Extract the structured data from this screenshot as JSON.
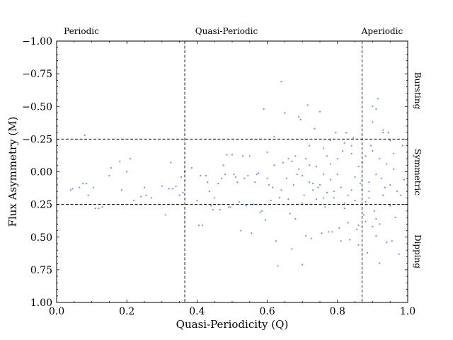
{
  "chart_data": {
    "type": "scatter",
    "xlabel": "Quasi-Periodicity (Q)",
    "ylabel": "Flux Asymmetry (M)",
    "xlim": [
      0.0,
      1.0
    ],
    "ylim": [
      1.0,
      -1.0
    ],
    "y_axis_inverted": true,
    "grid": false,
    "marker_color": "#6495ED",
    "x_ticks": [
      "0.0",
      "0.2",
      "0.4",
      "0.6",
      "0.8",
      "1.0"
    ],
    "x_tick_values": [
      0.0,
      0.2,
      0.4,
      0.6,
      0.8,
      1.0
    ],
    "y_ticks": [
      "−1.00",
      "−0.75",
      "−0.50",
      "−0.25",
      "0.00",
      "0.25",
      "0.50",
      "0.75",
      "1.00"
    ],
    "y_tick_values": [
      -1.0,
      -0.75,
      -0.5,
      -0.25,
      0.0,
      0.25,
      0.5,
      0.75,
      1.0
    ],
    "reference_lines": {
      "vertical": [
        0.365,
        0.87
      ],
      "horizontal": [
        -0.25,
        0.25
      ],
      "style": "dashed"
    },
    "top_labels": [
      "Periodic",
      "Quasi-Periodic",
      "Aperiodic"
    ],
    "right_labels": [
      "Bursting",
      "Symmetric",
      "Dipping"
    ],
    "points": [
      {
        "x": 0.04,
        "y": 0.14
      },
      {
        "x": 0.045,
        "y": 0.13
      },
      {
        "x": 0.065,
        "y": 0.12
      },
      {
        "x": 0.075,
        "y": 0.09
      },
      {
        "x": 0.08,
        "y": -0.28
      },
      {
        "x": 0.085,
        "y": 0.09
      },
      {
        "x": 0.09,
        "y": 0.18
      },
      {
        "x": 0.105,
        "y": 0.12
      },
      {
        "x": 0.11,
        "y": 0.28
      },
      {
        "x": 0.12,
        "y": 0.28
      },
      {
        "x": 0.13,
        "y": 0.27
      },
      {
        "x": 0.15,
        "y": 0.03
      },
      {
        "x": 0.155,
        "y": -0.03
      },
      {
        "x": 0.18,
        "y": -0.08
      },
      {
        "x": 0.185,
        "y": 0.14
      },
      {
        "x": 0.2,
        "y": 0.0
      },
      {
        "x": 0.21,
        "y": -0.1
      },
      {
        "x": 0.22,
        "y": 0.22
      },
      {
        "x": 0.24,
        "y": 0.19
      },
      {
        "x": 0.25,
        "y": 0.12
      },
      {
        "x": 0.255,
        "y": 0.18
      },
      {
        "x": 0.27,
        "y": 0.2
      },
      {
        "x": 0.3,
        "y": 0.11
      },
      {
        "x": 0.31,
        "y": 0.33
      },
      {
        "x": 0.32,
        "y": 0.13
      },
      {
        "x": 0.325,
        "y": -0.07
      },
      {
        "x": 0.33,
        "y": 0.13
      },
      {
        "x": 0.34,
        "y": 0.11
      },
      {
        "x": 0.35,
        "y": 0.18
      },
      {
        "x": 0.355,
        "y": 0.04
      },
      {
        "x": 0.36,
        "y": 0.16
      },
      {
        "x": 0.365,
        "y": 0.0
      },
      {
        "x": 0.385,
        "y": -0.03
      },
      {
        "x": 0.4,
        "y": 0.22
      },
      {
        "x": 0.405,
        "y": 0.41
      },
      {
        "x": 0.41,
        "y": 0.03
      },
      {
        "x": 0.415,
        "y": 0.41
      },
      {
        "x": 0.425,
        "y": 0.03
      },
      {
        "x": 0.43,
        "y": 0.08
      },
      {
        "x": 0.435,
        "y": 0.15
      },
      {
        "x": 0.44,
        "y": 0.26
      },
      {
        "x": 0.445,
        "y": 0.29
      },
      {
        "x": 0.45,
        "y": 0.2
      },
      {
        "x": 0.46,
        "y": 0.09
      },
      {
        "x": 0.465,
        "y": 0.29
      },
      {
        "x": 0.47,
        "y": 0.05
      },
      {
        "x": 0.475,
        "y": -0.05
      },
      {
        "x": 0.48,
        "y": 0.02
      },
      {
        "x": 0.485,
        "y": -0.13
      },
      {
        "x": 0.49,
        "y": 0.27
      },
      {
        "x": 0.495,
        "y": 0.27
      },
      {
        "x": 0.5,
        "y": -0.13
      },
      {
        "x": 0.505,
        "y": 0.02
      },
      {
        "x": 0.51,
        "y": 0.04
      },
      {
        "x": 0.515,
        "y": 0.08
      },
      {
        "x": 0.52,
        "y": 0.23
      },
      {
        "x": 0.525,
        "y": 0.45
      },
      {
        "x": 0.53,
        "y": -0.12
      },
      {
        "x": 0.535,
        "y": 0.05
      },
      {
        "x": 0.54,
        "y": 0.26
      },
      {
        "x": 0.545,
        "y": 0.03
      },
      {
        "x": 0.55,
        "y": -0.12
      },
      {
        "x": 0.555,
        "y": 0.47
      },
      {
        "x": 0.56,
        "y": 0.25
      },
      {
        "x": 0.565,
        "y": 0.08
      },
      {
        "x": 0.57,
        "y": 0.02
      },
      {
        "x": 0.575,
        "y": 0.01
      },
      {
        "x": 0.58,
        "y": 0.31
      },
      {
        "x": 0.585,
        "y": 0.3
      },
      {
        "x": 0.59,
        "y": -0.48
      },
      {
        "x": 0.595,
        "y": 0.37
      },
      {
        "x": 0.6,
        "y": -0.15
      },
      {
        "x": 0.605,
        "y": 0.1
      },
      {
        "x": 0.61,
        "y": 0.22
      },
      {
        "x": 0.615,
        "y": 0.12
      },
      {
        "x": 0.62,
        "y": -0.27
      },
      {
        "x": 0.625,
        "y": 0.53
      },
      {
        "x": 0.63,
        "y": 0.72
      },
      {
        "x": 0.635,
        "y": 0.2
      },
      {
        "x": 0.64,
        "y": -0.69
      },
      {
        "x": 0.645,
        "y": -0.07
      },
      {
        "x": 0.65,
        "y": -0.45
      },
      {
        "x": 0.655,
        "y": 0.05
      },
      {
        "x": 0.66,
        "y": 0.21
      },
      {
        "x": 0.665,
        "y": 0.32
      },
      {
        "x": 0.67,
        "y": 0.59
      },
      {
        "x": 0.675,
        "y": 0.1
      },
      {
        "x": 0.68,
        "y": 0.36
      },
      {
        "x": 0.685,
        "y": 0.02
      },
      {
        "x": 0.69,
        "y": -0.42
      },
      {
        "x": 0.695,
        "y": -0.4
      },
      {
        "x": 0.7,
        "y": 0.71
      },
      {
        "x": 0.705,
        "y": 0.18
      },
      {
        "x": 0.71,
        "y": 0.49
      },
      {
        "x": 0.715,
        "y": -0.51
      },
      {
        "x": 0.72,
        "y": -0.05
      },
      {
        "x": 0.725,
        "y": 0.51
      },
      {
        "x": 0.73,
        "y": 0.09
      },
      {
        "x": 0.735,
        "y": -0.33
      },
      {
        "x": 0.74,
        "y": 0.21
      },
      {
        "x": 0.745,
        "y": 0.12
      },
      {
        "x": 0.75,
        "y": -0.46
      },
      {
        "x": 0.755,
        "y": 0.47
      },
      {
        "x": 0.76,
        "y": 0.02
      },
      {
        "x": 0.765,
        "y": 0.27
      },
      {
        "x": 0.77,
        "y": -0.12
      },
      {
        "x": 0.775,
        "y": 0.46
      },
      {
        "x": 0.78,
        "y": 0.06
      },
      {
        "x": 0.785,
        "y": 0.46
      },
      {
        "x": 0.79,
        "y": 0.15
      },
      {
        "x": 0.795,
        "y": -0.3
      },
      {
        "x": 0.8,
        "y": 0.02
      },
      {
        "x": 0.805,
        "y": 0.43
      },
      {
        "x": 0.81,
        "y": 0.53
      },
      {
        "x": 0.815,
        "y": -0.16
      },
      {
        "x": 0.82,
        "y": 0.28
      },
      {
        "x": 0.825,
        "y": -0.3
      },
      {
        "x": 0.83,
        "y": 0.39
      },
      {
        "x": 0.835,
        "y": 0.52
      },
      {
        "x": 0.84,
        "y": 0.14
      },
      {
        "x": 0.845,
        "y": -0.26
      },
      {
        "x": 0.85,
        "y": 0.04
      },
      {
        "x": 0.855,
        "y": 0.44
      },
      {
        "x": 0.86,
        "y": 0.56
      },
      {
        "x": 0.865,
        "y": 0.09
      },
      {
        "x": 0.87,
        "y": -0.07
      },
      {
        "x": 0.875,
        "y": 0.33
      },
      {
        "x": 0.88,
        "y": 0.23
      },
      {
        "x": 0.885,
        "y": 0.62
      },
      {
        "x": 0.89,
        "y": 0.15
      },
      {
        "x": 0.895,
        "y": -0.2
      },
      {
        "x": 0.9,
        "y": -0.38
      },
      {
        "x": 0.905,
        "y": 0.3
      },
      {
        "x": 0.91,
        "y": 0.49
      },
      {
        "x": 0.915,
        "y": -0.56
      },
      {
        "x": 0.92,
        "y": 0.7
      },
      {
        "x": 0.925,
        "y": 0.05
      },
      {
        "x": 0.93,
        "y": -0.3
      },
      {
        "x": 0.935,
        "y": 0.12
      },
      {
        "x": 0.94,
        "y": 0.54
      },
      {
        "x": 0.945,
        "y": -0.3
      },
      {
        "x": 0.95,
        "y": 0.26
      },
      {
        "x": 0.955,
        "y": 0.53
      },
      {
        "x": 0.96,
        "y": -0.02
      },
      {
        "x": 0.965,
        "y": 0.35
      },
      {
        "x": 0.97,
        "y": 0.15
      },
      {
        "x": 0.975,
        "y": 0.63
      },
      {
        "x": 0.98,
        "y": 0.18
      },
      {
        "x": 0.985,
        "y": -0.2
      },
      {
        "x": 0.99,
        "y": 0.06
      },
      {
        "x": 0.67,
        "y": -0.08
      },
      {
        "x": 0.68,
        "y": -0.12
      },
      {
        "x": 0.69,
        "y": -0.02
      },
      {
        "x": 0.7,
        "y": 0.03
      },
      {
        "x": 0.71,
        "y": -0.1
      },
      {
        "x": 0.72,
        "y": 0.08
      },
      {
        "x": 0.73,
        "y": 0.14
      },
      {
        "x": 0.74,
        "y": -0.04
      },
      {
        "x": 0.75,
        "y": 0.1
      },
      {
        "x": 0.76,
        "y": -0.18
      },
      {
        "x": 0.77,
        "y": 0.16
      },
      {
        "x": 0.78,
        "y": -0.06
      },
      {
        "x": 0.79,
        "y": 0.2
      },
      {
        "x": 0.8,
        "y": -0.1
      },
      {
        "x": 0.81,
        "y": 0.12
      },
      {
        "x": 0.82,
        "y": -0.22
      },
      {
        "x": 0.83,
        "y": 0.18
      },
      {
        "x": 0.84,
        "y": -0.14
      },
      {
        "x": 0.85,
        "y": 0.22
      },
      {
        "x": 0.86,
        "y": -0.04
      },
      {
        "x": 0.87,
        "y": 0.14
      },
      {
        "x": 0.88,
        "y": -0.12
      },
      {
        "x": 0.89,
        "y": 0.08
      },
      {
        "x": 0.9,
        "y": -0.16
      },
      {
        "x": 0.91,
        "y": 0.02
      },
      {
        "x": 0.92,
        "y": -0.1
      },
      {
        "x": 0.93,
        "y": 0.18
      },
      {
        "x": 0.94,
        "y": -0.06
      },
      {
        "x": 0.95,
        "y": 0.1
      },
      {
        "x": 0.96,
        "y": -0.14
      },
      {
        "x": 0.9,
        "y": 0.42
      },
      {
        "x": 0.91,
        "y": 0.36
      },
      {
        "x": 0.92,
        "y": 0.4
      },
      {
        "x": 0.88,
        "y": 0.38
      },
      {
        "x": 0.86,
        "y": 0.41
      },
      {
        "x": 0.6,
        "y": 0.05
      },
      {
        "x": 0.62,
        "y": -0.05
      },
      {
        "x": 0.64,
        "y": 0.14
      },
      {
        "x": 0.66,
        "y": -0.1
      },
      {
        "x": 0.7,
        "y": 0.24
      },
      {
        "x": 0.72,
        "y": -0.2
      },
      {
        "x": 0.76,
        "y": 0.2
      },
      {
        "x": 0.78,
        "y": -0.24
      },
      {
        "x": 0.82,
        "y": 0.24
      },
      {
        "x": 0.84,
        "y": -0.2
      },
      {
        "x": 0.9,
        "y": -0.5
      },
      {
        "x": 0.91,
        "y": -0.48
      },
      {
        "x": 0.93,
        "y": -0.32
      },
      {
        "x": 0.95,
        "y": -0.24
      },
      {
        "x": 0.89,
        "y": 0.2
      }
    ]
  }
}
